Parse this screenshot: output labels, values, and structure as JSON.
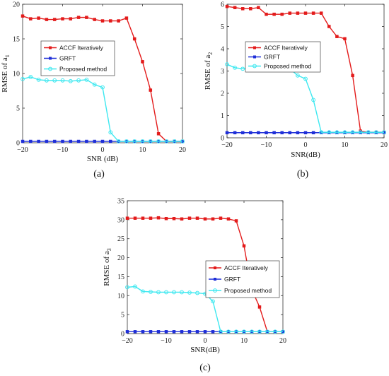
{
  "legend": [
    "ACCF Iteratively",
    "GRFT",
    "Proposed method"
  ],
  "colors": {
    "accf": "#e31b1b",
    "grft": "#1f2fd8",
    "proposed": "#3ee8f0"
  },
  "chart_data": [
    {
      "type": "line",
      "caption": "(a)",
      "xlabel": "SNR (dB)",
      "ylabel": "RMSE of a",
      "ylabel_sub": "1",
      "xlim": [
        -20,
        20
      ],
      "ylim": [
        0,
        20
      ],
      "xticks": [
        -20,
        -10,
        0,
        10,
        20
      ],
      "yticks": [
        0,
        5,
        10,
        15,
        20
      ],
      "grid": false,
      "legend_position": "top-left",
      "series": [
        {
          "name": "ACCF Iteratively",
          "x": [
            -20,
            -18,
            -16,
            -14,
            -12,
            -10,
            -8,
            -6,
            -4,
            -2,
            0,
            2,
            4,
            6,
            8,
            10,
            12,
            14,
            16,
            18,
            20
          ],
          "y": [
            18.3,
            17.9,
            18.0,
            17.8,
            17.8,
            17.9,
            17.9,
            18.1,
            18.1,
            17.8,
            17.6,
            17.6,
            17.6,
            18.0,
            15.0,
            11.7,
            7.6,
            1.3,
            0.2,
            0.2,
            0.2
          ]
        },
        {
          "name": "GRFT",
          "x": [
            -20,
            -18,
            -16,
            -14,
            -12,
            -10,
            -8,
            -6,
            -4,
            -2,
            0,
            2,
            4,
            6,
            8,
            10,
            12,
            14,
            16,
            18,
            20
          ],
          "y": [
            0.2,
            0.2,
            0.2,
            0.2,
            0.2,
            0.2,
            0.2,
            0.2,
            0.2,
            0.2,
            0.2,
            0.2,
            0.2,
            0.2,
            0.2,
            0.2,
            0.2,
            0.2,
            0.2,
            0.2,
            0.2
          ]
        },
        {
          "name": "Proposed method",
          "x": [
            -20,
            -18,
            -16,
            -14,
            -12,
            -10,
            -8,
            -6,
            -4,
            -2,
            0,
            2,
            4,
            6,
            8,
            10,
            12,
            14,
            16,
            18,
            20
          ],
          "y": [
            9.2,
            9.5,
            9.1,
            9.0,
            9.0,
            9.0,
            8.9,
            9.0,
            9.1,
            8.4,
            8.0,
            1.5,
            0.2,
            0.2,
            0.2,
            0.2,
            0.2,
            0.2,
            0.2,
            0.2,
            0.2
          ]
        }
      ]
    },
    {
      "type": "line",
      "caption": "(b)",
      "xlabel": "SNR(dB)",
      "ylabel": "RMSE of a",
      "ylabel_sub": "2",
      "xlim": [
        -20,
        20
      ],
      "ylim": [
        0,
        6
      ],
      "xticks": [
        -20,
        -10,
        0,
        10,
        20
      ],
      "yticks": [
        0,
        1,
        2,
        3,
        4,
        5,
        6
      ],
      "grid": false,
      "legend_position": "top-left",
      "series": [
        {
          "name": "ACCF Iteratively",
          "x": [
            -20,
            -18,
            -16,
            -14,
            -12,
            -10,
            -8,
            -6,
            -4,
            -2,
            0,
            2,
            4,
            6,
            8,
            10,
            12,
            14,
            16,
            18,
            20
          ],
          "y": [
            5.9,
            5.85,
            5.8,
            5.8,
            5.85,
            5.55,
            5.55,
            5.55,
            5.6,
            5.6,
            5.6,
            5.6,
            5.6,
            5.0,
            4.55,
            4.45,
            2.8,
            0.3,
            0.25,
            0.25,
            0.25
          ]
        },
        {
          "name": "GRFT",
          "x": [
            -20,
            -18,
            -16,
            -14,
            -12,
            -10,
            -8,
            -6,
            -4,
            -2,
            0,
            2,
            4,
            6,
            8,
            10,
            12,
            14,
            16,
            18,
            20
          ],
          "y": [
            0.23,
            0.23,
            0.23,
            0.23,
            0.23,
            0.23,
            0.23,
            0.23,
            0.23,
            0.23,
            0.23,
            0.23,
            0.23,
            0.23,
            0.23,
            0.23,
            0.23,
            0.23,
            0.23,
            0.23,
            0.23
          ]
        },
        {
          "name": "Proposed method",
          "x": [
            -20,
            -18,
            -16,
            -14,
            -12,
            -10,
            -8,
            -6,
            -4,
            -2,
            0,
            2,
            4,
            6,
            8,
            10,
            12,
            14,
            16,
            18,
            20
          ],
          "y": [
            3.3,
            3.15,
            3.1,
            3.12,
            3.05,
            3.1,
            3.12,
            3.1,
            3.1,
            2.8,
            2.65,
            1.7,
            0.25,
            0.25,
            0.25,
            0.25,
            0.25,
            0.25,
            0.25,
            0.25,
            0.25
          ]
        }
      ]
    },
    {
      "type": "line",
      "caption": "(c)",
      "xlabel": "SNR(dB)",
      "ylabel": "RMSE of a",
      "ylabel_sub": "3",
      "xlim": [
        -20,
        20
      ],
      "ylim": [
        0,
        35
      ],
      "xticks": [
        -20,
        -10,
        0,
        10,
        20
      ],
      "yticks": [
        0,
        5,
        10,
        15,
        20,
        25,
        30,
        35
      ],
      "grid": false,
      "legend_position": "right",
      "series": [
        {
          "name": "ACCF Iteratively",
          "x": [
            -20,
            -18,
            -16,
            -14,
            -12,
            -10,
            -8,
            -6,
            -4,
            -2,
            0,
            2,
            4,
            6,
            8,
            10,
            12,
            14,
            16,
            18,
            20
          ],
          "y": [
            30.4,
            30.4,
            30.4,
            30.4,
            30.5,
            30.3,
            30.3,
            30.2,
            30.4,
            30.4,
            30.2,
            30.2,
            30.4,
            30.2,
            29.7,
            23.1,
            11.6,
            7.0,
            0.5,
            0.5,
            0.5
          ]
        },
        {
          "name": "GRFT",
          "x": [
            -20,
            -18,
            -16,
            -14,
            -12,
            -10,
            -8,
            -6,
            -4,
            -2,
            0,
            2,
            4,
            6,
            8,
            10,
            12,
            14,
            16,
            18,
            20
          ],
          "y": [
            0.5,
            0.5,
            0.5,
            0.5,
            0.5,
            0.5,
            0.5,
            0.5,
            0.5,
            0.5,
            0.5,
            0.5,
            0.5,
            0.5,
            0.5,
            0.5,
            0.5,
            0.5,
            0.5,
            0.5,
            0.5
          ]
        },
        {
          "name": "Proposed method",
          "x": [
            -20,
            -18,
            -16,
            -14,
            -12,
            -10,
            -8,
            -6,
            -4,
            -2,
            0,
            2,
            4,
            6,
            8,
            10,
            12,
            14,
            16,
            18,
            20
          ],
          "y": [
            12.2,
            12.4,
            11.1,
            11.0,
            10.9,
            10.9,
            10.9,
            10.9,
            10.8,
            10.7,
            10.5,
            8.5,
            0.5,
            0.5,
            0.5,
            0.5,
            0.5,
            0.5,
            0.5,
            0.5,
            0.5
          ]
        }
      ]
    }
  ]
}
